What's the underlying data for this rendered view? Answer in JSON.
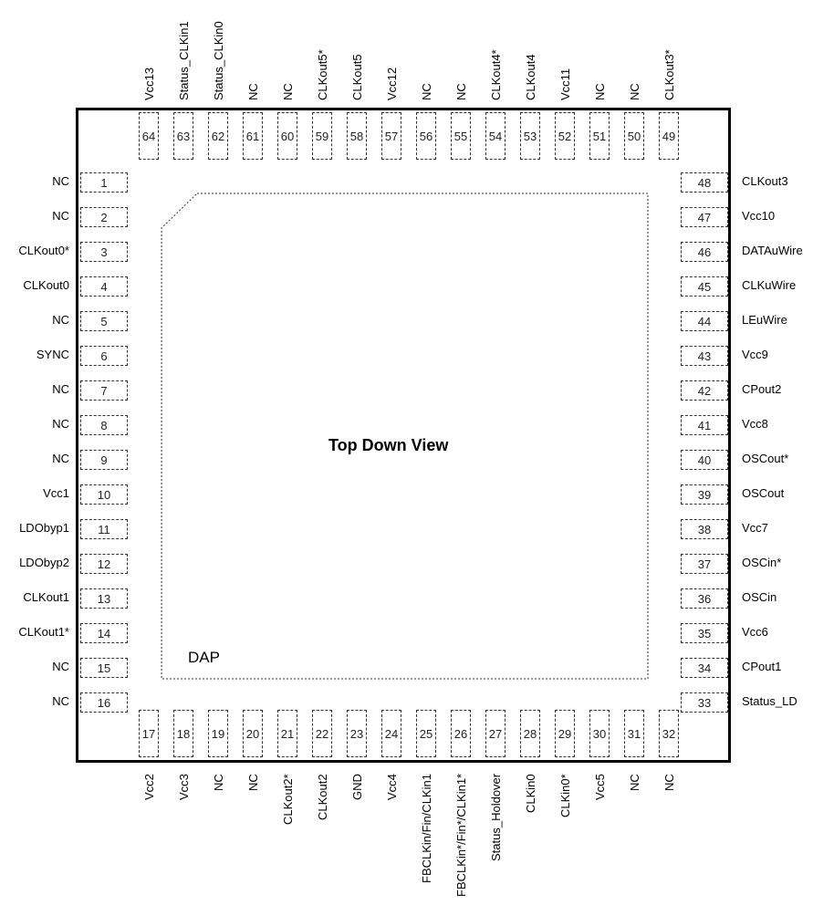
{
  "view_title": "Top Down View",
  "dap_label": "DAP",
  "pins": {
    "left": [
      {
        "num": "1",
        "name": "NC"
      },
      {
        "num": "2",
        "name": "NC"
      },
      {
        "num": "3",
        "name": "CLKout0*"
      },
      {
        "num": "4",
        "name": "CLKout0"
      },
      {
        "num": "5",
        "name": "NC"
      },
      {
        "num": "6",
        "name": "SYNC"
      },
      {
        "num": "7",
        "name": "NC"
      },
      {
        "num": "8",
        "name": "NC"
      },
      {
        "num": "9",
        "name": "NC"
      },
      {
        "num": "10",
        "name": "Vcc1"
      },
      {
        "num": "11",
        "name": "LDObyp1"
      },
      {
        "num": "12",
        "name": "LDObyp2"
      },
      {
        "num": "13",
        "name": "CLKout1"
      },
      {
        "num": "14",
        "name": "CLKout1*"
      },
      {
        "num": "15",
        "name": "NC"
      },
      {
        "num": "16",
        "name": "NC"
      }
    ],
    "bottom": [
      {
        "num": "17",
        "name": "Vcc2"
      },
      {
        "num": "18",
        "name": "Vcc3"
      },
      {
        "num": "19",
        "name": "NC"
      },
      {
        "num": "20",
        "name": "NC"
      },
      {
        "num": "21",
        "name": "CLKout2*"
      },
      {
        "num": "22",
        "name": "CLKout2"
      },
      {
        "num": "23",
        "name": "GND"
      },
      {
        "num": "24",
        "name": "Vcc4"
      },
      {
        "num": "25",
        "name": "FBCLKin/Fin/CLKin1"
      },
      {
        "num": "26",
        "name": "FBCLKin*/Fin*/CLKin1*"
      },
      {
        "num": "27",
        "name": "Status_Holdover"
      },
      {
        "num": "28",
        "name": "CLKin0"
      },
      {
        "num": "29",
        "name": "CLKin0*"
      },
      {
        "num": "30",
        "name": "Vcc5"
      },
      {
        "num": "31",
        "name": "NC"
      },
      {
        "num": "32",
        "name": "NC"
      }
    ],
    "right": [
      {
        "num": "33",
        "name": "Status_LD"
      },
      {
        "num": "34",
        "name": "CPout1"
      },
      {
        "num": "35",
        "name": "Vcc6"
      },
      {
        "num": "36",
        "name": "OSCin"
      },
      {
        "num": "37",
        "name": "OSCin*"
      },
      {
        "num": "38",
        "name": "Vcc7"
      },
      {
        "num": "39",
        "name": "OSCout"
      },
      {
        "num": "40",
        "name": "OSCout*"
      },
      {
        "num": "41",
        "name": "Vcc8"
      },
      {
        "num": "42",
        "name": "CPout2"
      },
      {
        "num": "43",
        "name": "Vcc9"
      },
      {
        "num": "44",
        "name": "LEuWire"
      },
      {
        "num": "45",
        "name": "CLKuWire"
      },
      {
        "num": "46",
        "name": "DATAuWire"
      },
      {
        "num": "47",
        "name": "Vcc10"
      },
      {
        "num": "48",
        "name": "CLKout3"
      }
    ],
    "top": [
      {
        "num": "64",
        "name": "Vcc13"
      },
      {
        "num": "63",
        "name": "Status_CLKin1"
      },
      {
        "num": "62",
        "name": "Status_CLKin0"
      },
      {
        "num": "61",
        "name": "NC"
      },
      {
        "num": "60",
        "name": "NC"
      },
      {
        "num": "59",
        "name": "CLKout5*"
      },
      {
        "num": "58",
        "name": "CLKout5"
      },
      {
        "num": "57",
        "name": "Vcc12"
      },
      {
        "num": "56",
        "name": "NC"
      },
      {
        "num": "55",
        "name": "NC"
      },
      {
        "num": "54",
        "name": "CLKout4*"
      },
      {
        "num": "53",
        "name": "CLKout4"
      },
      {
        "num": "52",
        "name": "Vcc11"
      },
      {
        "num": "51",
        "name": "NC"
      },
      {
        "num": "50",
        "name": "NC"
      },
      {
        "num": "49",
        "name": "CLKout3*"
      }
    ]
  }
}
